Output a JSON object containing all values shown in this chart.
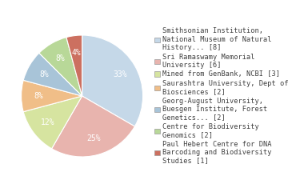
{
  "slices": [
    {
      "label": "Smithsonian Institution,\nNational Museum of Natural\nHistory... [8]",
      "value": 8,
      "color": "#c5d8e8"
    },
    {
      "label": "Sri Ramaswamy Memorial\nUniversity [6]",
      "value": 6,
      "color": "#e8b4ae"
    },
    {
      "label": "Mined from GenBank, NCBI [3]",
      "value": 3,
      "color": "#d6e4a0"
    },
    {
      "label": "Saurashtra University, Dept of\nBiosciences [2]",
      "value": 2,
      "color": "#f0be88"
    },
    {
      "label": "Georg-August University,\nBuesgen Institute, Forest\nGenetics... [2]",
      "value": 2,
      "color": "#a8c4d8"
    },
    {
      "label": "Centre for Biodiversity\nGenomics [2]",
      "value": 2,
      "color": "#b8d898"
    },
    {
      "label": "Paul Hebert Centre for DNA\nBarcoding and Biodiversity\nStudies [1]",
      "value": 1,
      "color": "#cc7060"
    }
  ],
  "background_color": "#ffffff",
  "text_color": "#404040",
  "fontsize": 6.2,
  "pie_pct_fontsize": 7.0
}
